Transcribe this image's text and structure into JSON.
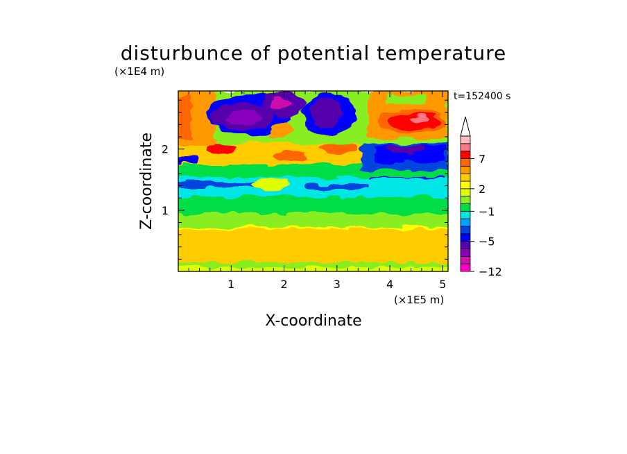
{
  "chart_data": {
    "type": "heatmap",
    "title": "disturbunce of potential temperature",
    "xlabel": "X-coordinate",
    "ylabel": "Z-coordinate",
    "x_unit": "(×1E5 m)",
    "y_unit": "(×1E4 m)",
    "time_label": "t=152400 s",
    "x_ticks": [
      1,
      2,
      3,
      4,
      5
    ],
    "y_ticks": [
      1,
      2
    ],
    "xlim": [
      0,
      5.1
    ],
    "ylim": [
      0,
      2.95
    ],
    "colorbar": {
      "labels": [
        {
          "level": 7,
          "text": "7"
        },
        {
          "level": 2,
          "text": "2"
        },
        {
          "level": -1,
          "text": "−1"
        },
        {
          "level": -5,
          "text": "−5"
        },
        {
          "level": -12,
          "text": "−12"
        }
      ],
      "levels": [
        -12,
        -10,
        -8,
        -6,
        -5,
        -4,
        -3,
        -2,
        -1,
        0,
        1,
        2,
        3,
        4,
        5,
        7,
        9,
        11
      ],
      "colors": [
        "#ff00cc",
        "#cc11aa",
        "#8800bb",
        "#5500aa",
        "#0000ff",
        "#0044dd",
        "#00a0ff",
        "#00e5e5",
        "#00dd44",
        "#88ee22",
        "#ddff00",
        "#ffff00",
        "#ffcc00",
        "#ff9900",
        "#ff6600",
        "#ff0000",
        "#ff7788",
        "#ffbbbb"
      ],
      "extend": "max"
    }
  }
}
